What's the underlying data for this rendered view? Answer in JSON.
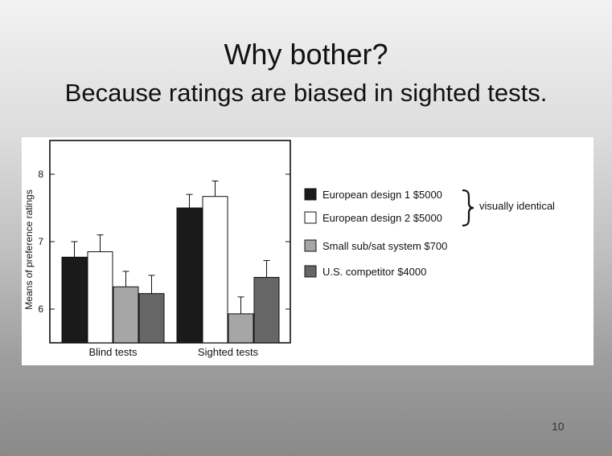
{
  "slide": {
    "title": "Why bother?",
    "subtitle": "Because ratings are biased in sighted tests.",
    "page_number": "10"
  },
  "chart_data": {
    "type": "bar",
    "title": "",
    "xlabel": "",
    "ylabel": "Means of preference ratings",
    "ylim": [
      5.5,
      8.5
    ],
    "yticks": [
      6,
      7,
      8
    ],
    "categories": [
      "Blind tests",
      "Sighted tests"
    ],
    "series": [
      {
        "name": "European design 1  $5000",
        "color": "#1a1a1a",
        "values": [
          6.77,
          7.5
        ],
        "errors": [
          0.23,
          0.2
        ]
      },
      {
        "name": "European design 2  $5000",
        "color": "#ffffff",
        "values": [
          6.85,
          7.67
        ],
        "errors": [
          0.25,
          0.23
        ]
      },
      {
        "name": "Small sub/sat system $700",
        "color": "#a6a6a6",
        "values": [
          6.33,
          5.93
        ],
        "errors": [
          0.23,
          0.25
        ]
      },
      {
        "name": "U.S. competitor  $4000",
        "color": "#666666",
        "values": [
          6.23,
          6.47
        ],
        "errors": [
          0.27,
          0.25
        ]
      }
    ],
    "annotation": "visually identical",
    "grid": false,
    "legend_position": "right"
  }
}
